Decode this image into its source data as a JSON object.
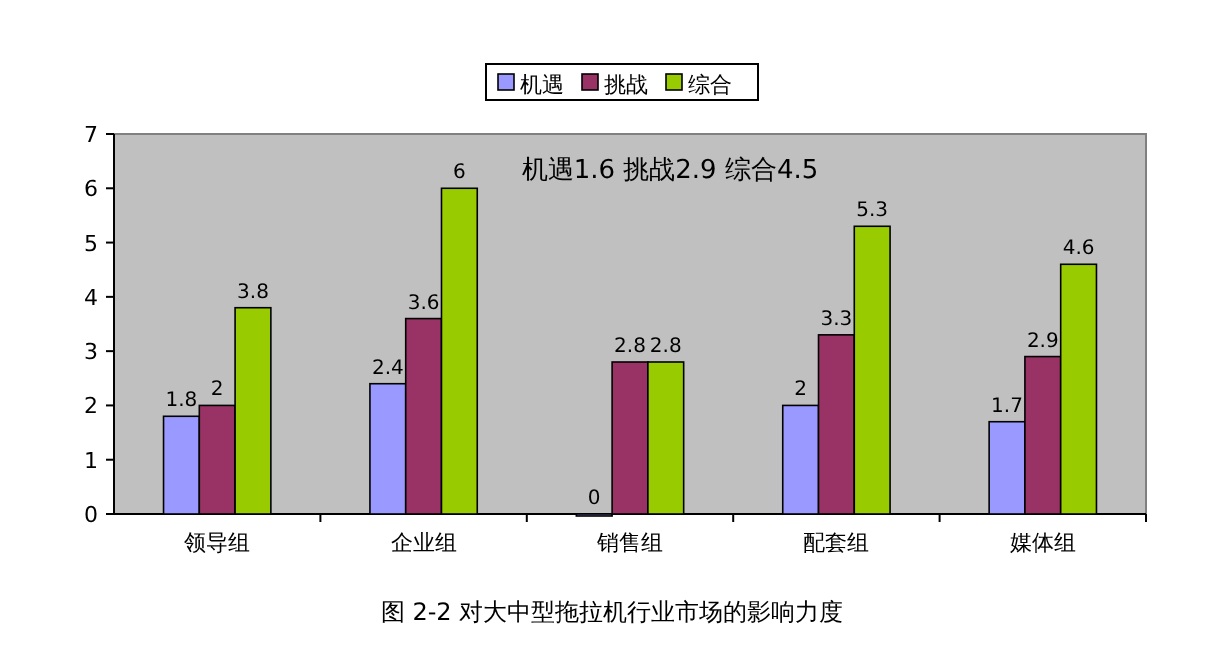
{
  "chart_data": {
    "type": "bar",
    "title": "图 2-2 对大中型拖拉机行业市场的影响力度",
    "categories": [
      "领导组",
      "企业组",
      "销售组",
      "配套组",
      "媒体组"
    ],
    "series": [
      {
        "name": "机遇",
        "color": "#9999ff",
        "values": [
          1.8,
          2.4,
          0,
          2,
          1.7
        ]
      },
      {
        "name": "挑战",
        "color": "#993366",
        "values": [
          2,
          3.6,
          2.8,
          3.3,
          2.9
        ]
      },
      {
        "name": "综合",
        "color": "#99cc00",
        "values": [
          3.8,
          6,
          2.8,
          5.3,
          4.6
        ]
      }
    ],
    "ylim": [
      0,
      7
    ],
    "yticks": [
      0,
      1,
      2,
      3,
      4,
      5,
      6,
      7
    ],
    "data_labels": true,
    "legend": "top",
    "annotations": [
      "机遇1.6 挑战2.9 综合4.5"
    ]
  }
}
